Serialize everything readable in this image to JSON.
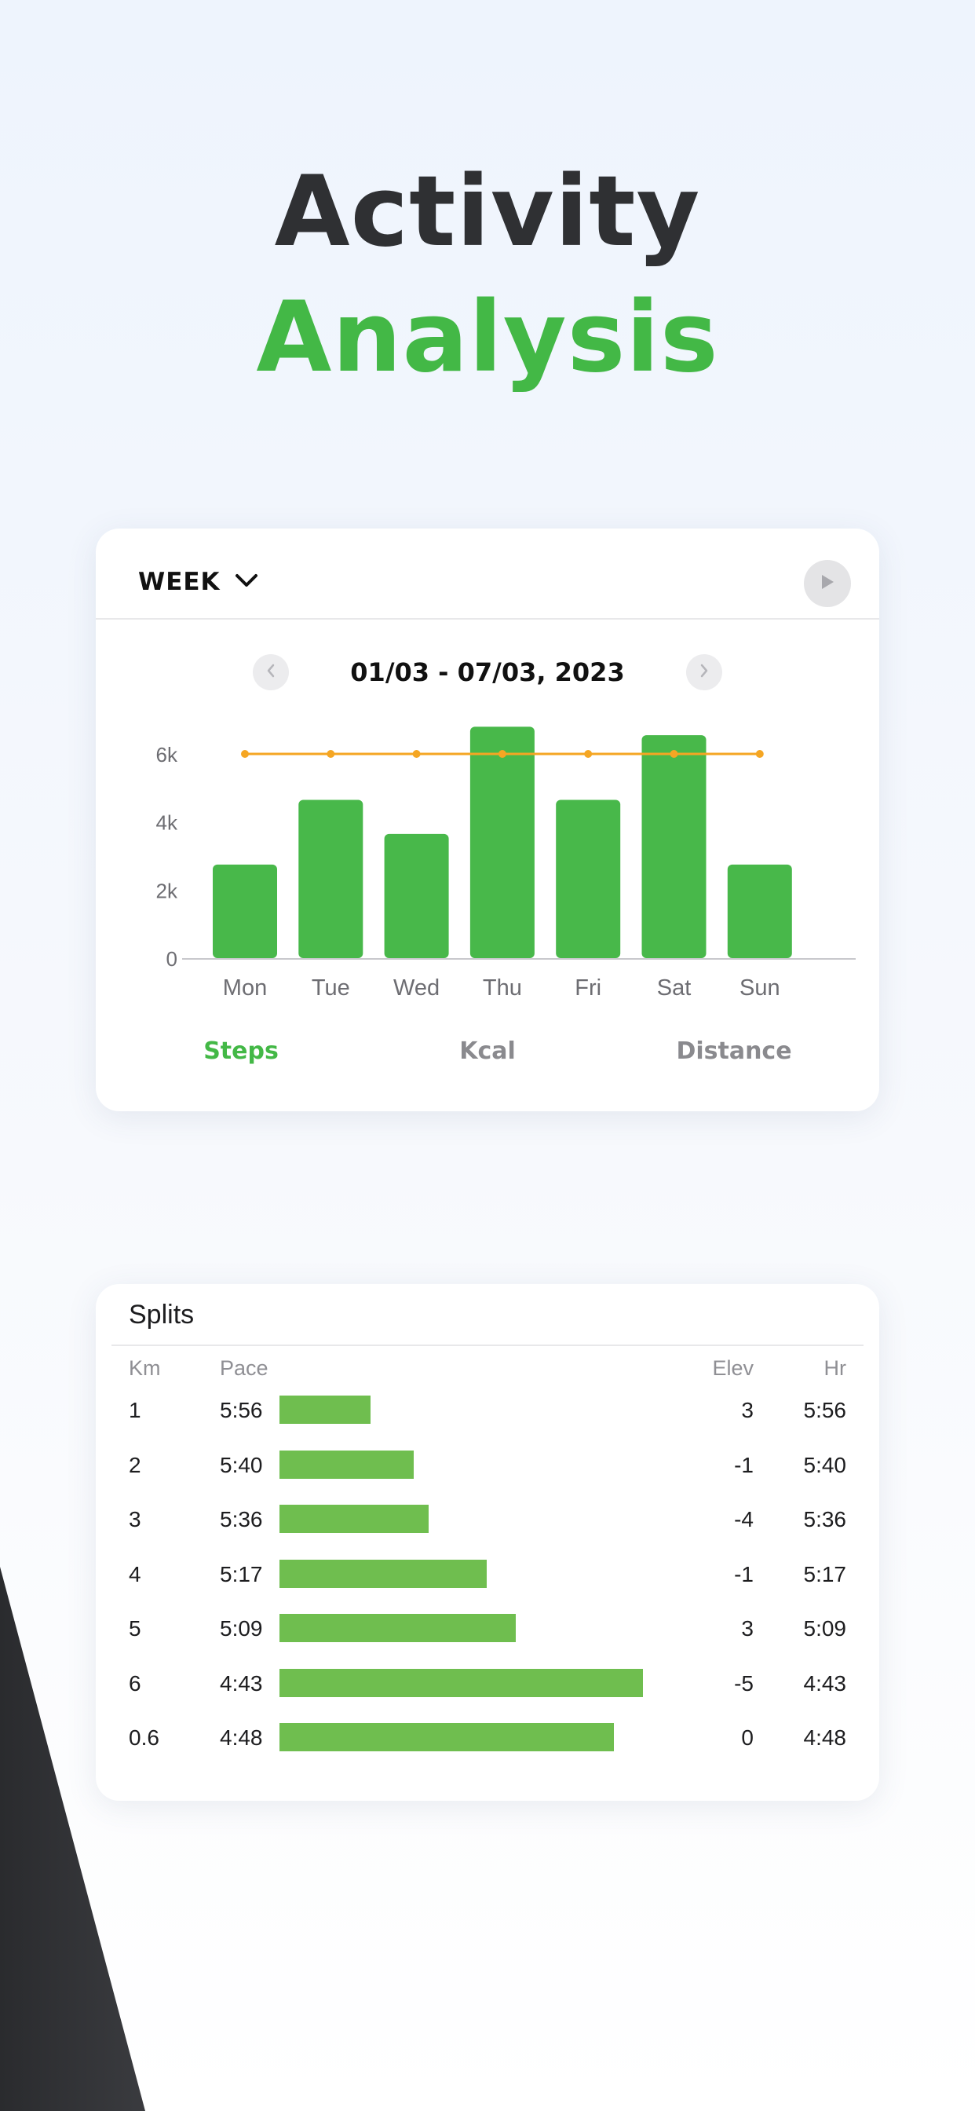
{
  "headline": {
    "line1": "Activity",
    "line2": "Analysis"
  },
  "colors": {
    "accent": "#43b846",
    "bar": "#48b84a",
    "target_line": "#f5a623",
    "pace_bar": "#6fbe4f",
    "dark": "#2f3033"
  },
  "activity_card": {
    "period_label": "WEEK",
    "period_icon": "chevron-down-icon",
    "play_icon": "play-icon",
    "date_range": "01/03 - 07/03, 2023",
    "prev_icon": "chevron-left-icon",
    "next_icon": "chevron-right-icon",
    "tabs": [
      {
        "label": "Steps",
        "active": true
      },
      {
        "label": "Kcal",
        "active": false
      },
      {
        "label": "Distance",
        "active": false
      }
    ]
  },
  "chart_data": {
    "type": "bar",
    "categories": [
      "Mon",
      "Tue",
      "Wed",
      "Thu",
      "Fri",
      "Sat",
      "Sun"
    ],
    "values": [
      2750,
      4650,
      3650,
      6800,
      4650,
      6550,
      2750
    ],
    "target": 6000,
    "yticks": [
      {
        "value": 0,
        "label": "0"
      },
      {
        "value": 2000,
        "label": "2k"
      },
      {
        "value": 4000,
        "label": "4k"
      },
      {
        "value": 6000,
        "label": "6k"
      }
    ],
    "ylim": [
      0,
      7000
    ],
    "title": "",
    "xlabel": "",
    "ylabel": "",
    "grid": false
  },
  "splits": {
    "title": "Splits",
    "headers": {
      "km": "Km",
      "pace": "Pace",
      "elev": "Elev",
      "hr": "Hr"
    },
    "rows": [
      {
        "km": "1",
        "pace": "5:56",
        "elev": "3",
        "hr": "5:56",
        "bar": 0.25
      },
      {
        "km": "2",
        "pace": "5:40",
        "elev": "-1",
        "hr": "5:40",
        "bar": 0.37
      },
      {
        "km": "3",
        "pace": "5:36",
        "elev": "-4",
        "hr": "5:36",
        "bar": 0.41
      },
      {
        "km": "4",
        "pace": "5:17",
        "elev": "-1",
        "hr": "5:17",
        "bar": 0.57
      },
      {
        "km": "5",
        "pace": "5:09",
        "elev": "3",
        "hr": "5:09",
        "bar": 0.65
      },
      {
        "km": "6",
        "pace": "4:43",
        "elev": "-5",
        "hr": "4:43",
        "bar": 1.0
      },
      {
        "km": "0.6",
        "pace": "4:48",
        "elev": "0",
        "hr": "4:48",
        "bar": 0.92
      }
    ]
  }
}
